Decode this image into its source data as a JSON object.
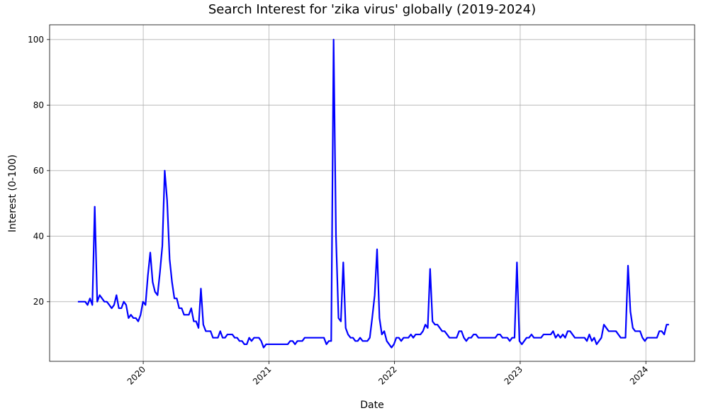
{
  "chart_data": {
    "type": "line",
    "title": "Search Interest for 'zika virus' globally (2019-2024)",
    "x_label": "Date",
    "y_label": "Interest (0-100)",
    "color": "#0000ff",
    "grid": true,
    "xlim": [
      2019.255,
      2024.388
    ],
    "xticks": [
      2020,
      2021,
      2022,
      2023,
      2024
    ],
    "ylim": [
      1.8,
      104.5
    ],
    "yticks": [
      20,
      40,
      60,
      80,
      100
    ],
    "x": [
      2019.48,
      2019.499,
      2019.518,
      2019.538,
      2019.557,
      2019.576,
      2019.595,
      2019.614,
      2019.634,
      2019.653,
      2019.672,
      2019.691,
      2019.71,
      2019.73,
      2019.749,
      2019.768,
      2019.787,
      2019.806,
      2019.826,
      2019.845,
      2019.864,
      2019.883,
      2019.902,
      2019.922,
      2019.941,
      2019.96,
      2019.979,
      2019.998,
      2020.018,
      2020.037,
      2020.056,
      2020.075,
      2020.094,
      2020.114,
      2020.133,
      2020.152,
      2020.171,
      2020.19,
      2020.21,
      2020.229,
      2020.248,
      2020.267,
      2020.286,
      2020.306,
      2020.325,
      2020.344,
      2020.363,
      2020.382,
      2020.402,
      2020.421,
      2020.44,
      2020.459,
      2020.478,
      2020.498,
      2020.517,
      2020.536,
      2020.555,
      2020.574,
      2020.594,
      2020.613,
      2020.632,
      2020.651,
      2020.67,
      2020.69,
      2020.709,
      2020.728,
      2020.747,
      2020.766,
      2020.786,
      2020.805,
      2020.824,
      2020.843,
      2020.862,
      2020.882,
      2020.901,
      2020.92,
      2020.939,
      2020.958,
      2020.978,
      2020.997,
      2021.016,
      2021.035,
      2021.054,
      2021.074,
      2021.093,
      2021.112,
      2021.131,
      2021.15,
      2021.17,
      2021.189,
      2021.208,
      2021.227,
      2021.246,
      2021.266,
      2021.285,
      2021.304,
      2021.323,
      2021.342,
      2021.362,
      2021.381,
      2021.4,
      2021.419,
      2021.438,
      2021.458,
      2021.477,
      2021.496,
      2021.515,
      2021.534,
      2021.554,
      2021.573,
      2021.592,
      2021.611,
      2021.63,
      2021.65,
      2021.669,
      2021.688,
      2021.707,
      2021.726,
      2021.746,
      2021.765,
      2021.784,
      2021.803,
      2021.822,
      2021.842,
      2021.861,
      2021.88,
      2021.899,
      2021.918,
      2021.938,
      2021.957,
      2021.976,
      2021.995,
      2022.014,
      2022.034,
      2022.053,
      2022.072,
      2022.091,
      2022.11,
      2022.13,
      2022.149,
      2022.168,
      2022.187,
      2022.206,
      2022.226,
      2022.245,
      2022.264,
      2022.283,
      2022.302,
      2022.322,
      2022.341,
      2022.36,
      2022.379,
      2022.398,
      2022.418,
      2022.437,
      2022.456,
      2022.475,
      2022.494,
      2022.514,
      2022.533,
      2022.552,
      2022.571,
      2022.59,
      2022.61,
      2022.629,
      2022.648,
      2022.667,
      2022.686,
      2022.706,
      2022.725,
      2022.744,
      2022.763,
      2022.782,
      2022.802,
      2022.821,
      2022.84,
      2022.859,
      2022.878,
      2022.898,
      2022.917,
      2022.936,
      2022.955,
      2022.974,
      2022.994,
      2023.013,
      2023.032,
      2023.051,
      2023.07,
      2023.09,
      2023.109,
      2023.128,
      2023.147,
      2023.166,
      2023.186,
      2023.205,
      2023.224,
      2023.243,
      2023.262,
      2023.282,
      2023.301,
      2023.32,
      2023.339,
      2023.358,
      2023.378,
      2023.397,
      2023.416,
      2023.435,
      2023.454,
      2023.474,
      2023.493,
      2023.512,
      2023.531,
      2023.55,
      2023.57,
      2023.589,
      2023.608,
      2023.627,
      2023.646,
      2023.666,
      2023.685,
      2023.704,
      2023.723,
      2023.742,
      2023.762,
      2023.781,
      2023.8,
      2023.819,
      2023.838,
      2023.858,
      2023.877,
      2023.896,
      2023.915,
      2023.934,
      2023.954,
      2023.973,
      2023.992,
      2024.011,
      2024.03,
      2024.05,
      2024.069,
      2024.088,
      2024.107,
      2024.126,
      2024.146,
      2024.165,
      2024.184
    ],
    "values": [
      20,
      20,
      20,
      20,
      19,
      21,
      19,
      49,
      20,
      22,
      21,
      20,
      20,
      19,
      18,
      19,
      22,
      18,
      18,
      20,
      19,
      15,
      16,
      15,
      15,
      14,
      16,
      20,
      19,
      28,
      35,
      26,
      23,
      22,
      29,
      37,
      60,
      51,
      33,
      26,
      21,
      21,
      18,
      18,
      16,
      16,
      16,
      18,
      14,
      14,
      12,
      24,
      13,
      11,
      11,
      11,
      9,
      9,
      9,
      11,
      9,
      9,
      10,
      10,
      10,
      9,
      9,
      8,
      8,
      7,
      7,
      9,
      8,
      9,
      9,
      9,
      8,
      6,
      7,
      7,
      7,
      7,
      7,
      7,
      7,
      7,
      7,
      7,
      8,
      8,
      7,
      8,
      8,
      8,
      9,
      9,
      9,
      9,
      9,
      9,
      9,
      9,
      9,
      7,
      8,
      8,
      100,
      40,
      15,
      14,
      32,
      12,
      10,
      9,
      9,
      8,
      8,
      9,
      8,
      8,
      8,
      9,
      15,
      22,
      36,
      15,
      10,
      11,
      8,
      7,
      6,
      7,
      9,
      9,
      8,
      9,
      9,
      9,
      10,
      9,
      10,
      10,
      10,
      11,
      13,
      12,
      30,
      14,
      13,
      13,
      12,
      11,
      11,
      10,
      9,
      9,
      9,
      9,
      11,
      11,
      9,
      8,
      9,
      9,
      10,
      10,
      9,
      9,
      9,
      9,
      9,
      9,
      9,
      9,
      10,
      10,
      9,
      9,
      9,
      8,
      9,
      9,
      32,
      8,
      7,
      8,
      9,
      9,
      10,
      9,
      9,
      9,
      9,
      10,
      10,
      10,
      10,
      11,
      9,
      10,
      9,
      10,
      9,
      11,
      11,
      10,
      9,
      9,
      9,
      9,
      9,
      8,
      10,
      8,
      9,
      7,
      8,
      9,
      13,
      12,
      11,
      11,
      11,
      11,
      10,
      9,
      9,
      9,
      31,
      17,
      12,
      11,
      11,
      11,
      9,
      8,
      9,
      9,
      9,
      9,
      9,
      11,
      11,
      10,
      13,
      13
    ]
  }
}
